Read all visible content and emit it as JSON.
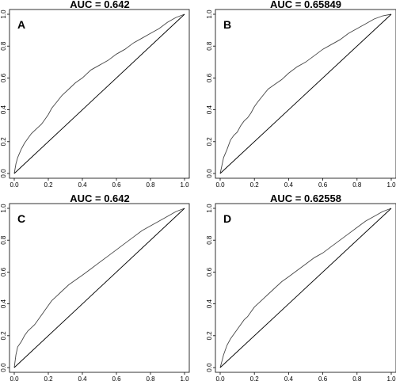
{
  "chart_data": [
    {
      "type": "line",
      "panel": "A",
      "title": "AUC = 0.642",
      "xlim": [
        0,
        1
      ],
      "ylim": [
        0,
        1
      ],
      "x_ticks": [
        "0.0",
        "0.2",
        "0.4",
        "0.6",
        "0.8",
        "1.0"
      ],
      "y_ticks": [
        "0.0",
        "0.2",
        "0.4",
        "0.6",
        "0.8",
        "1.0"
      ],
      "series": [
        {
          "x": [
            0,
            0.01,
            0.02,
            0.04,
            0.06,
            0.08,
            0.1,
            0.12,
            0.14,
            0.16,
            0.18,
            0.2,
            0.22,
            0.25,
            0.28,
            0.32,
            0.36,
            0.4,
            0.45,
            0.5,
            0.55,
            0.6,
            0.65,
            0.7,
            0.75,
            0.8,
            0.85,
            0.9,
            0.95,
            1.0
          ],
          "y": [
            0,
            0.06,
            0.1,
            0.15,
            0.19,
            0.22,
            0.25,
            0.27,
            0.29,
            0.31,
            0.34,
            0.37,
            0.41,
            0.45,
            0.49,
            0.53,
            0.57,
            0.6,
            0.65,
            0.68,
            0.71,
            0.75,
            0.78,
            0.82,
            0.85,
            0.88,
            0.91,
            0.95,
            0.98,
            1.0
          ]
        },
        {
          "x": [
            0,
            1
          ],
          "y": [
            0,
            1
          ]
        }
      ]
    },
    {
      "type": "line",
      "panel": "B",
      "title": "AUC = 0.65849",
      "xlim": [
        0,
        1
      ],
      "ylim": [
        0,
        1
      ],
      "x_ticks": [
        "0.0",
        "0.2",
        "0.4",
        "0.6",
        "0.8",
        "1.0"
      ],
      "y_ticks": [
        "0.0",
        "0.2",
        "0.4",
        "0.6",
        "0.8",
        "1.0"
      ],
      "series": [
        {
          "x": [
            0,
            0.01,
            0.02,
            0.04,
            0.06,
            0.08,
            0.1,
            0.12,
            0.14,
            0.16,
            0.18,
            0.2,
            0.22,
            0.25,
            0.28,
            0.32,
            0.36,
            0.4,
            0.45,
            0.5,
            0.55,
            0.6,
            0.65,
            0.7,
            0.75,
            0.8,
            0.85,
            0.9,
            0.95,
            1.0
          ],
          "y": [
            0,
            0.05,
            0.1,
            0.15,
            0.21,
            0.24,
            0.26,
            0.3,
            0.33,
            0.35,
            0.38,
            0.42,
            0.45,
            0.49,
            0.53,
            0.56,
            0.59,
            0.63,
            0.67,
            0.7,
            0.74,
            0.78,
            0.81,
            0.84,
            0.88,
            0.91,
            0.94,
            0.97,
            0.99,
            1.0
          ]
        },
        {
          "x": [
            0,
            1
          ],
          "y": [
            0,
            1
          ]
        }
      ]
    },
    {
      "type": "line",
      "panel": "C",
      "title": "AUC = 0.642",
      "xlim": [
        0,
        1
      ],
      "ylim": [
        0,
        1
      ],
      "x_ticks": [
        "0.0",
        "0.2",
        "0.4",
        "0.6",
        "0.8",
        "1.0"
      ],
      "y_ticks": [
        "0.0",
        "0.2",
        "0.4",
        "0.6",
        "0.8",
        "1.0"
      ],
      "series": [
        {
          "x": [
            0,
            0.01,
            0.02,
            0.04,
            0.06,
            0.08,
            0.1,
            0.12,
            0.14,
            0.16,
            0.18,
            0.2,
            0.22,
            0.25,
            0.28,
            0.32,
            0.36,
            0.4,
            0.45,
            0.5,
            0.55,
            0.6,
            0.65,
            0.7,
            0.75,
            0.8,
            0.85,
            0.9,
            0.95,
            1.0
          ],
          "y": [
            0,
            0.08,
            0.13,
            0.16,
            0.2,
            0.23,
            0.25,
            0.27,
            0.3,
            0.33,
            0.36,
            0.39,
            0.42,
            0.45,
            0.48,
            0.52,
            0.55,
            0.58,
            0.62,
            0.66,
            0.7,
            0.74,
            0.78,
            0.82,
            0.86,
            0.89,
            0.92,
            0.95,
            0.98,
            1.0
          ]
        },
        {
          "x": [
            0,
            1
          ],
          "y": [
            0,
            1
          ]
        }
      ]
    },
    {
      "type": "line",
      "panel": "D",
      "title": "AUC = 0.62558",
      "xlim": [
        0,
        1
      ],
      "ylim": [
        0,
        1
      ],
      "x_ticks": [
        "0.0",
        "0.2",
        "0.4",
        "0.6",
        "0.8",
        "1.0"
      ],
      "y_ticks": [
        "0.0",
        "0.2",
        "0.4",
        "0.6",
        "0.8",
        "1.0"
      ],
      "series": [
        {
          "x": [
            0,
            0.01,
            0.02,
            0.04,
            0.06,
            0.08,
            0.1,
            0.12,
            0.14,
            0.16,
            0.18,
            0.2,
            0.22,
            0.25,
            0.28,
            0.32,
            0.36,
            0.4,
            0.45,
            0.5,
            0.55,
            0.6,
            0.65,
            0.7,
            0.75,
            0.8,
            0.85,
            0.9,
            0.95,
            1.0
          ],
          "y": [
            0,
            0.04,
            0.08,
            0.14,
            0.18,
            0.21,
            0.24,
            0.27,
            0.3,
            0.32,
            0.35,
            0.38,
            0.4,
            0.43,
            0.46,
            0.5,
            0.54,
            0.57,
            0.61,
            0.65,
            0.69,
            0.72,
            0.76,
            0.8,
            0.84,
            0.88,
            0.92,
            0.95,
            0.98,
            1.0
          ]
        },
        {
          "x": [
            0,
            1
          ],
          "y": [
            0,
            1
          ]
        }
      ]
    }
  ]
}
